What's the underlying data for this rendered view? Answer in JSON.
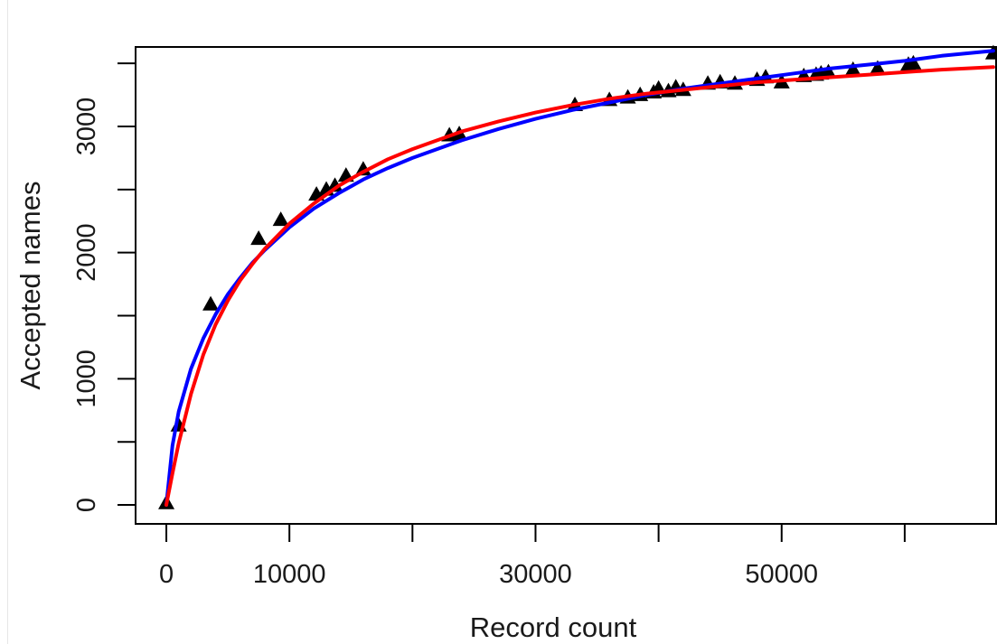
{
  "chart_data": {
    "type": "scatter",
    "title": "",
    "xlabel": "Record count",
    "ylabel": "Accepted names",
    "xlim": [
      -2500,
      67500
    ],
    "ylim": [
      -150,
      3630
    ],
    "x_ticks": [
      0,
      10000,
      20000,
      30000,
      40000,
      50000,
      60000
    ],
    "x_tick_labels": [
      "0",
      "10000",
      "",
      "30000",
      "",
      "50000",
      ""
    ],
    "y_ticks": [
      0,
      500,
      1000,
      1500,
      2000,
      2500,
      3000,
      3500
    ],
    "y_tick_labels": [
      "0",
      "",
      "1000",
      "",
      "2000",
      "",
      "3000",
      ""
    ],
    "grid": false,
    "legend": "none",
    "series": [
      {
        "kind": "points",
        "marker": "triangle",
        "color": "#000000",
        "x": [
          0,
          1000,
          3600,
          7500,
          9300,
          12200,
          13000,
          13700,
          14600,
          16000,
          23000,
          23800,
          33200,
          36000,
          37500,
          38500,
          39600,
          40000,
          40800,
          41400,
          42000,
          44000,
          45000,
          46200,
          48000,
          48700,
          50000,
          51800,
          52800,
          53200,
          53800,
          55800,
          57800,
          60300,
          60700,
          67200
        ],
        "y": [
          15,
          630,
          1590,
          2110,
          2260,
          2460,
          2500,
          2530,
          2610,
          2660,
          2930,
          2940,
          3170,
          3210,
          3230,
          3250,
          3270,
          3300,
          3280,
          3310,
          3290,
          3340,
          3350,
          3340,
          3370,
          3390,
          3350,
          3400,
          3410,
          3420,
          3430,
          3450,
          3460,
          3490,
          3500,
          3580
        ]
      },
      {
        "kind": "line",
        "color": "#0000ff",
        "x": [
          0,
          500,
          1000,
          2000,
          3000,
          4000,
          5000,
          6000,
          7000,
          8000,
          10000,
          12000,
          14000,
          16000,
          18000,
          20000,
          22000,
          24000,
          27000,
          30000,
          33000,
          36000,
          39000,
          42000,
          45000,
          48000,
          51000,
          54000,
          57000,
          60000,
          63000,
          67200
        ],
        "y": [
          0,
          470,
          740,
          1080,
          1320,
          1510,
          1670,
          1800,
          1920,
          2020,
          2200,
          2350,
          2470,
          2580,
          2670,
          2750,
          2820,
          2890,
          2980,
          3060,
          3130,
          3190,
          3250,
          3300,
          3340,
          3380,
          3420,
          3460,
          3490,
          3520,
          3560,
          3600
        ]
      },
      {
        "kind": "line",
        "color": "#ff0000",
        "x": [
          0,
          500,
          1000,
          2000,
          3000,
          4000,
          5000,
          6000,
          7000,
          8000,
          10000,
          12000,
          14000,
          16000,
          18000,
          20000,
          22000,
          24000,
          27000,
          30000,
          33000,
          36000,
          39000,
          42000,
          45000,
          48000,
          51000,
          54000,
          57000,
          60000,
          63000,
          67200
        ],
        "y": [
          0,
          250,
          490,
          880,
          1190,
          1430,
          1620,
          1780,
          1910,
          2030,
          2230,
          2390,
          2530,
          2640,
          2740,
          2820,
          2890,
          2960,
          3040,
          3110,
          3170,
          3220,
          3260,
          3290,
          3320,
          3350,
          3370,
          3390,
          3410,
          3430,
          3450,
          3470
        ]
      }
    ]
  }
}
